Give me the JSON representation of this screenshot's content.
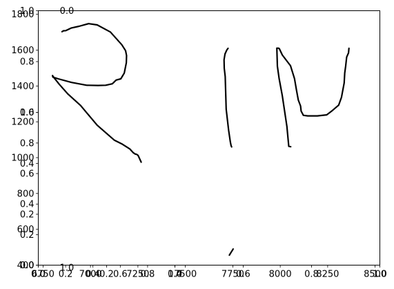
{
  "chart_data": {
    "type": "line",
    "title": "",
    "xlabel": "",
    "ylabel": "",
    "grid": false,
    "legend": "none",
    "ink_color": "#000000",
    "axes": [
      {
        "name": "axis-a",
        "xlim": [
          0.0,
          1.0
        ],
        "ylim": [
          0.0,
          1.0
        ],
        "xticks": [
          "0.0",
          "0.2",
          "0.4",
          "0.6",
          "0.8",
          "1.0"
        ],
        "yticks": [
          "0.0",
          "0.2",
          "0.4",
          "0.6",
          "0.8",
          "1.0"
        ]
      },
      {
        "name": "axis-b",
        "xlim": [
          0.0,
          1.0
        ],
        "ylim": [
          0.0,
          1.0
        ],
        "xticks": [
          "0.0",
          "0.2",
          "0.4",
          "0.6",
          "0.8",
          "1.0"
        ],
        "yticks": [
          "0.0",
          "0.2",
          "0.4",
          "0.6",
          "0.8",
          "1.0"
        ],
        "top_tick": "0.0",
        "extra_xtick": "1.0"
      },
      {
        "name": "axis-c",
        "xlim": [
          6725,
          8525
        ],
        "ylim": [
          400,
          1820
        ],
        "xticks": [
          "6750",
          "7000",
          "7250",
          "7500",
          "7750",
          "8000",
          "8250",
          "8500"
        ],
        "yticks": [
          "400",
          "600",
          "800",
          "1000",
          "1200",
          "1400",
          "1600",
          "1800"
        ]
      }
    ],
    "strokes": [
      {
        "name": "stroke-r",
        "x": [
          6850,
          6858,
          6870,
          6900,
          6940,
          6990,
          7035,
          7105,
          7165,
          7185,
          7190,
          7189,
          7178,
          7160,
          7135,
          7115,
          7080,
          7040,
          6980,
          6900,
          6830,
          6802,
          6800,
          6808,
          6835,
          6880,
          6948,
          7035,
          7125,
          7165,
          7208,
          7225,
          7236,
          7244,
          7251,
          7267
        ],
        "y": [
          1703,
          1708,
          1709,
          1724,
          1733,
          1748,
          1741,
          1701,
          1630,
          1597,
          1570,
          1530,
          1472,
          1440,
          1433,
          1412,
          1404,
          1403,
          1404,
          1420,
          1440,
          1449,
          1458,
          1446,
          1410,
          1356,
          1291,
          1181,
          1098,
          1077,
          1048,
          1028,
          1020,
          1018,
          1012,
          975
        ]
      },
      {
        "name": "stroke-i",
        "x": [
          7725,
          7718,
          7709,
          7704,
          7705,
          7710,
          7712,
          7715,
          7728,
          7737,
          7741,
          7744
        ],
        "y": [
          1610,
          1600,
          1579,
          1546,
          1499,
          1452,
          1385,
          1270,
          1154,
          1088,
          1067,
          1060
        ]
      },
      {
        "name": "stroke-i-dot",
        "x": [
          7732,
          7740,
          7752
        ],
        "y": [
          456,
          470,
          490
        ]
      },
      {
        "name": "stroke-n",
        "x": [
          7983,
          7992,
          7995,
          8011,
          8033,
          8054,
          8075,
          8086,
          8095,
          8107,
          8110,
          8122,
          8145,
          8196,
          8245,
          8276,
          8308,
          8323,
          8337,
          8340,
          8345,
          8350,
          8360,
          8362
        ],
        "y": [
          1611,
          1611,
          1608,
          1573,
          1542,
          1513,
          1441,
          1374,
          1322,
          1288,
          1260,
          1236,
          1233,
          1233,
          1239,
          1264,
          1293,
          1337,
          1417,
          1472,
          1512,
          1561,
          1585,
          1610
        ]
      },
      {
        "name": "stroke-n-stem",
        "x": [
          7982,
          7985,
          7994,
          8011,
          8035,
          8040,
          8045,
          8055
        ],
        "y": [
          1611,
          1510,
          1442,
          1346,
          1174,
          1120,
          1063,
          1061
        ]
      }
    ]
  }
}
